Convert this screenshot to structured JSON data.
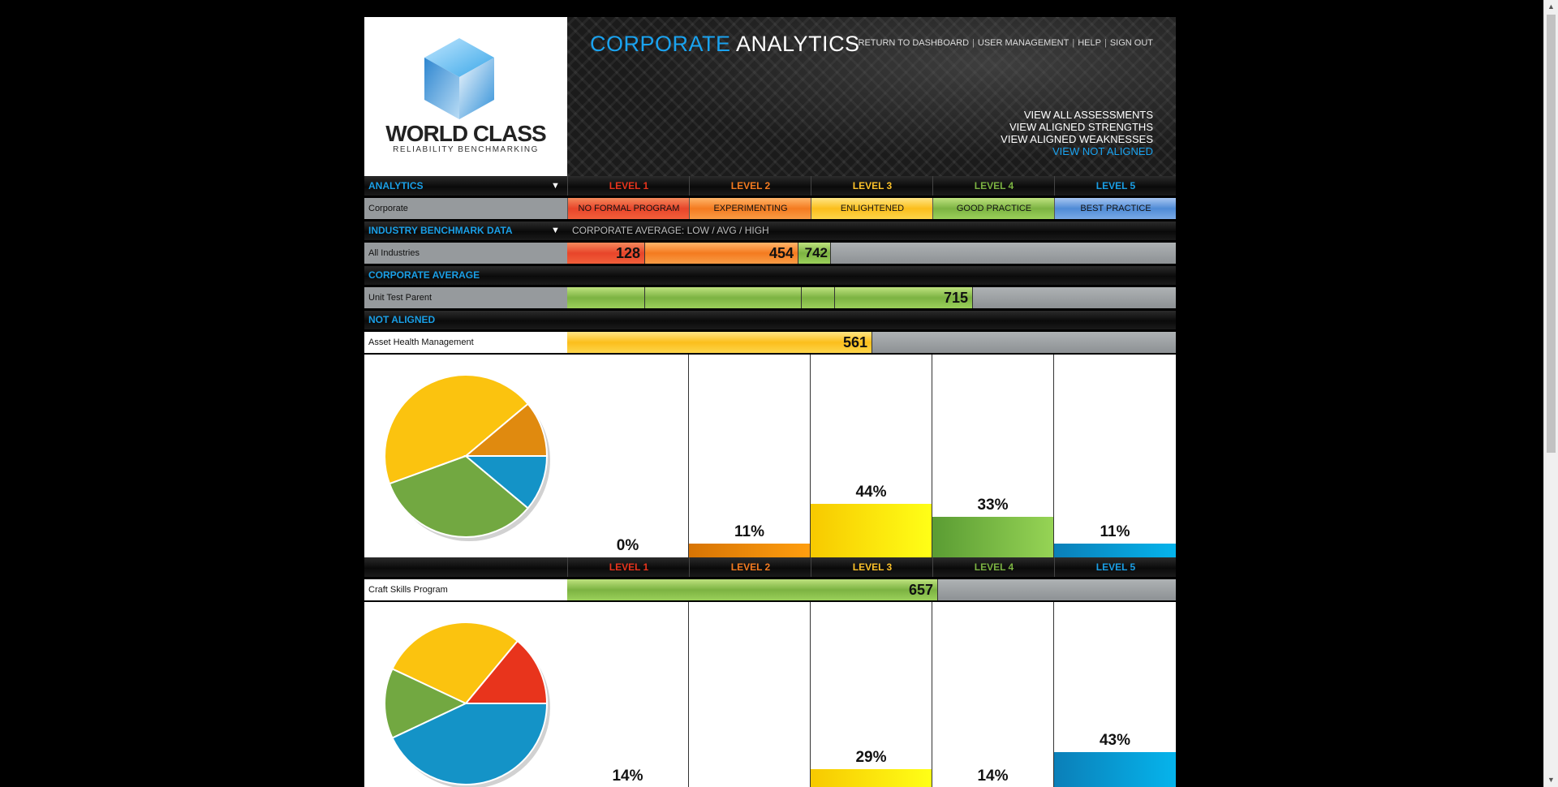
{
  "logo": {
    "title": "WORLD CLASS",
    "subtitle": "RELIABILITY BENCHMARKING"
  },
  "brand": {
    "part1": "CORPORATE",
    "part2": "ANALYTICS"
  },
  "nav": [
    "RETURN TO DASHBOARD",
    "USER MANAGEMENT",
    "HELP",
    "SIGN OUT"
  ],
  "view_links": [
    {
      "label": "VIEW ALL ASSESSMENTS",
      "active": false
    },
    {
      "label": "VIEW ALIGNED STRENGTHS",
      "active": false
    },
    {
      "label": "VIEW ALIGNED WEAKNESSES",
      "active": false
    },
    {
      "label": "VIEW NOT ALIGNED",
      "active": true
    }
  ],
  "levels": [
    {
      "label": "LEVEL 1",
      "color": "#e8341c",
      "badge": "NO FORMAL PROGRAM"
    },
    {
      "label": "LEVEL 2",
      "color": "#f47b20",
      "badge": "EXPERIMENTING"
    },
    {
      "label": "LEVEL 3",
      "color": "#fdc22a",
      "badge": "ENLIGHTENED"
    },
    {
      "label": "LEVEL 4",
      "color": "#7cb342",
      "badge": "GOOD PRACTICE"
    },
    {
      "label": "LEVEL 5",
      "color": "#1a9fe6",
      "badge": "BEST PRACTICE"
    }
  ],
  "analytics": {
    "label": "ANALYTICS",
    "row_label": "Corporate"
  },
  "industry": {
    "label": "INDUSTRY BENCHMARK DATA",
    "caption": "CORPORATE AVERAGE: LOW / AVG / HIGH",
    "row_label": "All Industries",
    "low": "128",
    "avg": "454",
    "high": "742"
  },
  "corporate_average": {
    "label": "CORPORATE AVERAGE",
    "row_label": "Unit Test Parent",
    "value": "715"
  },
  "not_aligned": {
    "label": "NOT ALIGNED"
  },
  "assessments": [
    {
      "name": "Asset Health Management",
      "score": "561",
      "pct_labels": [
        "0%",
        "11%",
        "44%",
        "33%",
        "11%"
      ],
      "distribution": [
        0,
        11,
        44,
        33,
        11
      ]
    },
    {
      "name": "Craft Skills Program",
      "score": "657",
      "pct_labels": [
        "14%",
        "",
        "29%",
        "14%",
        "43%"
      ],
      "distribution": [
        14,
        0,
        29,
        14,
        43
      ]
    }
  ],
  "pie_colors": [
    "#e8341c",
    "#e08a0f",
    "#fbc30f",
    "#72a841",
    "#1493c7"
  ]
}
